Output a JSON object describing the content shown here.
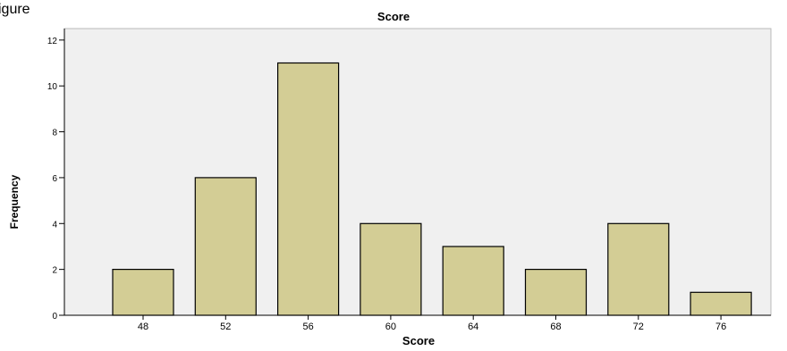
{
  "caption": "igure",
  "chart_data": {
    "type": "bar",
    "title": "Score",
    "xlabel": "Score",
    "ylabel": "Frequency",
    "categories": [
      "48",
      "52",
      "56",
      "60",
      "64",
      "68",
      "72",
      "76"
    ],
    "values": [
      2,
      6,
      11,
      4,
      3,
      2,
      4,
      1
    ],
    "ylim": [
      0,
      12.5
    ],
    "yticks": [
      0,
      2,
      4,
      6,
      8,
      10,
      12
    ],
    "grid": false,
    "legend": "none",
    "colors": {
      "bar_fill": "#d3cd95",
      "bar_stroke": "#000000",
      "plot_background": "#f0f0f0",
      "axis": "#000000"
    }
  }
}
